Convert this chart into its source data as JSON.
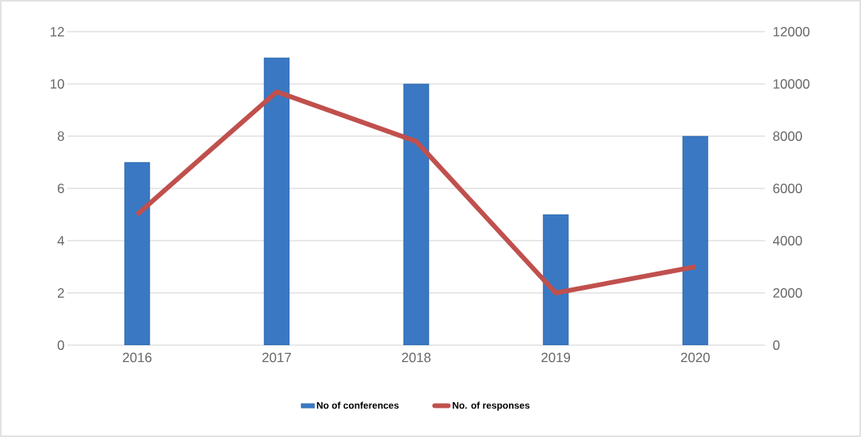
{
  "chart_data": {
    "type": "bar",
    "categories": [
      "2016",
      "2017",
      "2018",
      "2019",
      "2020"
    ],
    "series": [
      {
        "name": "No of conferences",
        "color": "#3a78c3",
        "values": [
          7,
          11,
          10,
          5,
          8
        ]
      },
      {
        "name": "No. of responses",
        "type": "line",
        "axis": "y2",
        "color": "#c0504d",
        "values": [
          5000,
          9700,
          7800,
          2000,
          3000
        ]
      }
    ],
    "ylim": [
      0,
      12
    ],
    "yticks": [
      0,
      2,
      4,
      6,
      8,
      10,
      12
    ],
    "y2lim": [
      0,
      12000
    ],
    "y2ticks": [
      0,
      2000,
      4000,
      6000,
      8000,
      10000,
      12000
    ],
    "grid": "y",
    "legend": "bottom"
  }
}
